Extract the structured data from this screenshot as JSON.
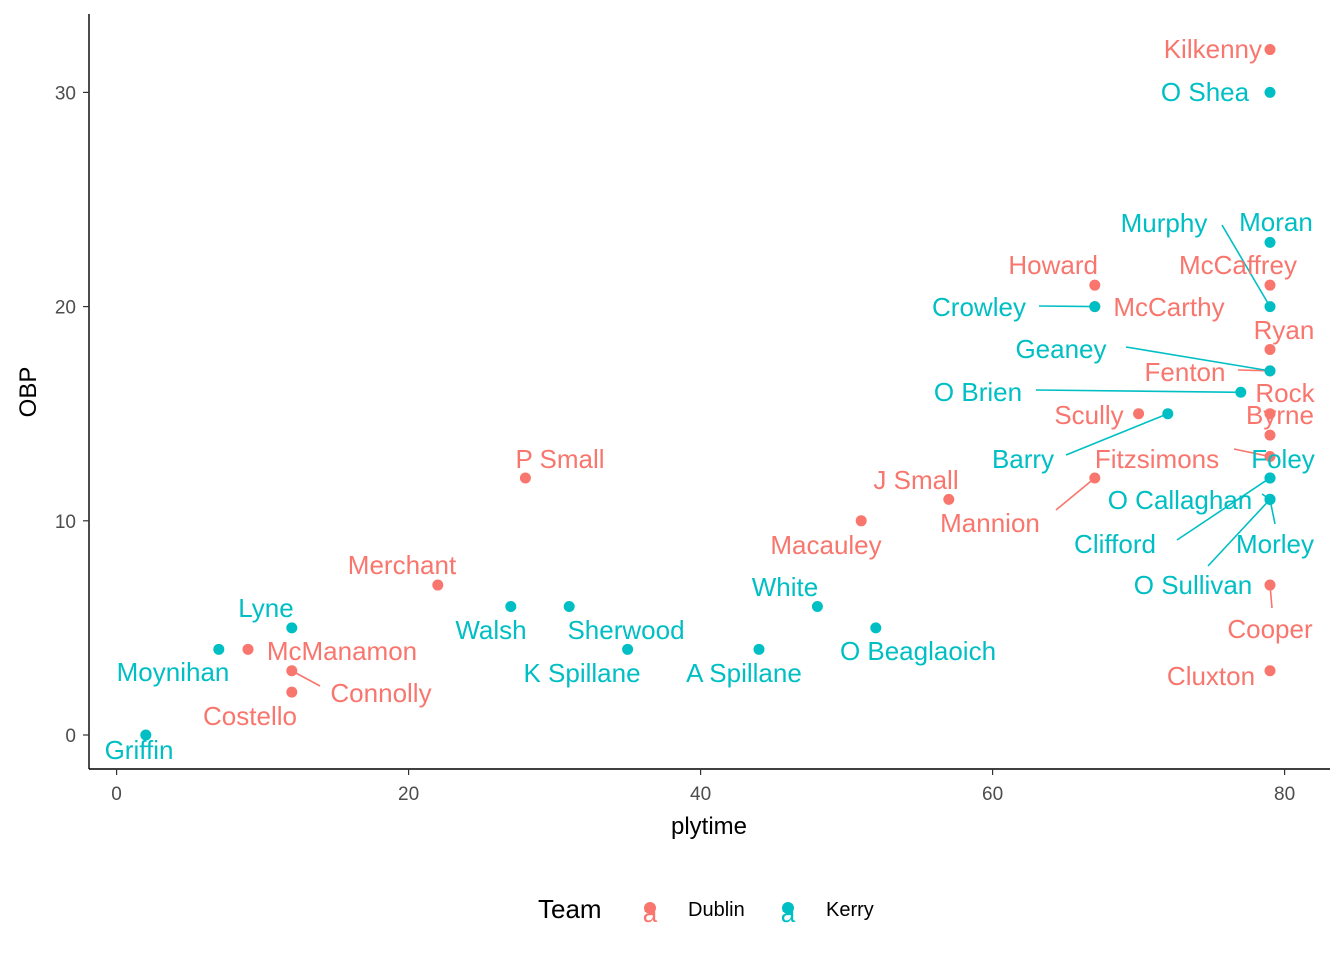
{
  "chart_data": {
    "type": "scatter",
    "xlabel": "plytime",
    "ylabel": "OBP",
    "xlim": [
      -2,
      83
    ],
    "ylim": [
      -1.6,
      33.5
    ],
    "x_ticks": [
      0,
      20,
      40,
      60,
      80
    ],
    "y_ticks": [
      0,
      10,
      20,
      30
    ],
    "grid": false,
    "legend": {
      "title": "Team",
      "position": "bottom",
      "key_glyph": "a",
      "entries": [
        {
          "name": "Dublin",
          "color": "#F8766D"
        },
        {
          "name": "Kerry",
          "color": "#00BFC4"
        }
      ]
    },
    "series": [
      {
        "name": "Dublin",
        "color": "#F8766D",
        "points": [
          {
            "label": "Kilkenny",
            "x": 79,
            "y": 32
          },
          {
            "label": "Howard",
            "x": 67,
            "y": 21
          },
          {
            "label": "McCaffrey",
            "x": 79,
            "y": 21
          },
          {
            "label": "McCarthy",
            "x": 67,
            "y": 20
          },
          {
            "label": "Ryan",
            "x": 79,
            "y": 18
          },
          {
            "label": "Fenton",
            "x": 79,
            "y": 17
          },
          {
            "label": "Rock",
            "x": 79,
            "y": 15
          },
          {
            "label": "Scully",
            "x": 70,
            "y": 15
          },
          {
            "label": "Byrne",
            "x": 79,
            "y": 14
          },
          {
            "label": "Fitzsimons",
            "x": 79,
            "y": 13
          },
          {
            "label": "P Small",
            "x": 28,
            "y": 12
          },
          {
            "label": "Mannion",
            "x": 67,
            "y": 12
          },
          {
            "label": "J Small",
            "x": 57,
            "y": 11
          },
          {
            "label": "Macauley",
            "x": 51,
            "y": 10
          },
          {
            "label": "Merchant",
            "x": 22,
            "y": 7
          },
          {
            "label": "Cooper",
            "x": 79,
            "y": 7
          },
          {
            "label": "McManamon",
            "x": 9,
            "y": 4
          },
          {
            "label": "Connolly",
            "x": 12,
            "y": 3
          },
          {
            "label": "Cluxton",
            "x": 79,
            "y": 3
          },
          {
            "label": "Costello",
            "x": 12,
            "y": 2
          }
        ]
      },
      {
        "name": "Kerry",
        "color": "#00BFC4",
        "points": [
          {
            "label": "O Shea",
            "x": 79,
            "y": 30
          },
          {
            "label": "Moran",
            "x": 79,
            "y": 23
          },
          {
            "label": "Murphy",
            "x": 79,
            "y": 20
          },
          {
            "label": "Crowley",
            "x": 67,
            "y": 20
          },
          {
            "label": "Geaney",
            "x": 79,
            "y": 17
          },
          {
            "label": "O Brien",
            "x": 77,
            "y": 16
          },
          {
            "label": "Barry",
            "x": 72,
            "y": 15
          },
          {
            "label": "Foley",
            "x": 79,
            "y": 12
          },
          {
            "label": "Clifford",
            "x": 79,
            "y": 12
          },
          {
            "label": "O Callaghan",
            "x": 79,
            "y": 11
          },
          {
            "label": "Morley",
            "x": 79,
            "y": 11
          },
          {
            "label": "O Sullivan",
            "x": 79,
            "y": 11
          },
          {
            "label": "White",
            "x": 48,
            "y": 6
          },
          {
            "label": "Walsh",
            "x": 27,
            "y": 6
          },
          {
            "label": "Sherwood",
            "x": 31,
            "y": 6
          },
          {
            "label": "Lyne",
            "x": 12,
            "y": 5
          },
          {
            "label": "O Beaglaoich",
            "x": 52,
            "y": 5
          },
          {
            "label": "K Spillane",
            "x": 35,
            "y": 4
          },
          {
            "label": "A Spillane",
            "x": 44,
            "y": 4
          },
          {
            "label": "Moynihan",
            "x": 7,
            "y": 4
          },
          {
            "label": "Griffin",
            "x": 2,
            "y": 0
          }
        ]
      }
    ]
  }
}
